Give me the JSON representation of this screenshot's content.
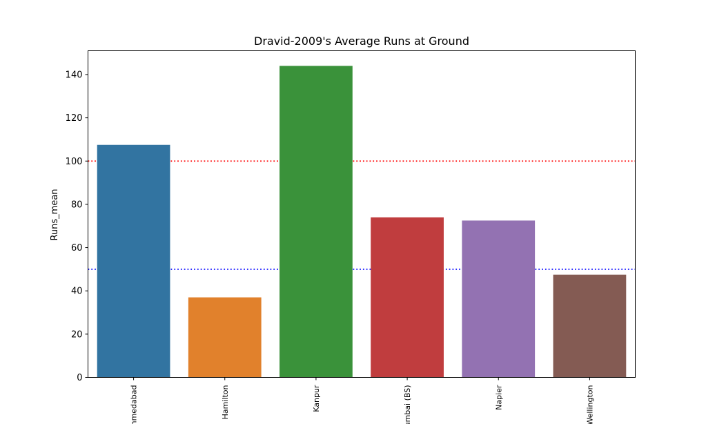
{
  "chart_data": {
    "type": "bar",
    "title": "Dravid-2009's Average Runs at Ground",
    "xlabel": "",
    "ylabel": "Runs_mean",
    "categories": [
      "Ahmedabad",
      "Hamilton",
      "Kanpur",
      "Mumbai (BS)",
      "Napier",
      "Wellington"
    ],
    "values": [
      107.5,
      37,
      144,
      74,
      72.5,
      47.5
    ],
    "colors": [
      "#3274a1",
      "#e1812c",
      "#3a923a",
      "#c03d3e",
      "#9372b2",
      "#845b53"
    ],
    "ylim": [
      0,
      151
    ],
    "yticks": [
      0,
      20,
      40,
      60,
      80,
      100,
      120,
      140
    ],
    "reference_lines": [
      {
        "value": 100,
        "color": "#ff0000",
        "style": "dotted"
      },
      {
        "value": 50,
        "color": "#0000ff",
        "style": "dotted"
      }
    ],
    "grid": false
  }
}
